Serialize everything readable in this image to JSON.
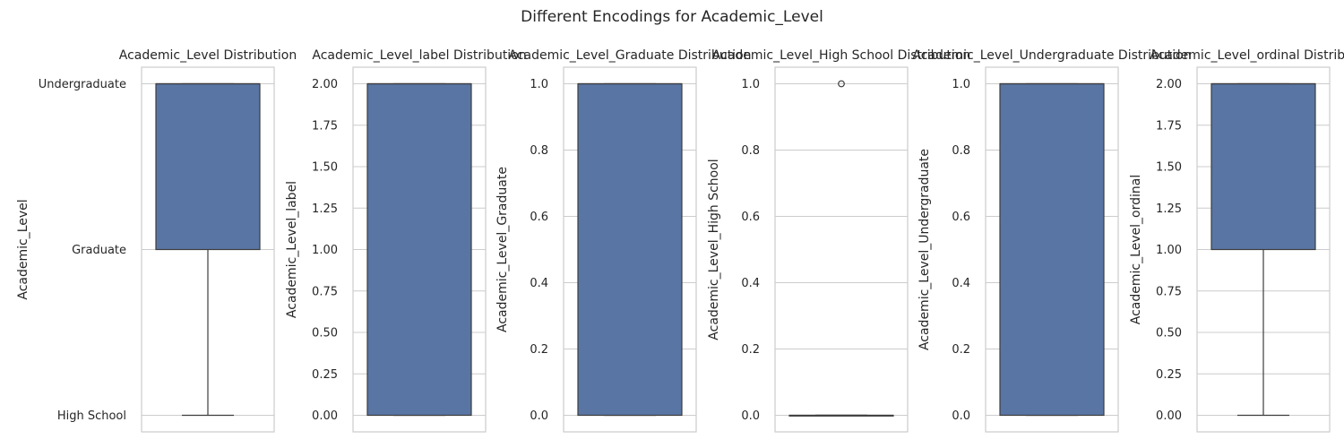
{
  "figure": {
    "suptitle": "Different Encodings for Academic_Level"
  },
  "colors": {
    "box_fill": "#5975a4",
    "box_edge": "#3d3d3d",
    "grid": "#cccccc",
    "spine": "#cccccc",
    "background": "#ffffff"
  },
  "chart_data": [
    {
      "type": "box",
      "title": "Academic_Level Distribution",
      "ylabel": "Academic_Level",
      "categorical_y": true,
      "yticks": [
        {
          "v": 0,
          "label": "High School"
        },
        {
          "v": 1,
          "label": "Graduate"
        },
        {
          "v": 2,
          "label": "Undergraduate"
        }
      ],
      "ylim": [
        -0.1,
        2.1
      ],
      "grid": true,
      "box": {
        "whislo": 0,
        "q1": 1,
        "med": 2,
        "q3": 2,
        "whishi": 2
      },
      "fliers": []
    },
    {
      "type": "box",
      "title": "Academic_Level_label Distribution",
      "ylabel": "Academic_Level_label",
      "yticks": [
        {
          "v": 0,
          "label": "0.00"
        },
        {
          "v": 0.25,
          "label": "0.25"
        },
        {
          "v": 0.5,
          "label": "0.50"
        },
        {
          "v": 0.75,
          "label": "0.75"
        },
        {
          "v": 1,
          "label": "1.00"
        },
        {
          "v": 1.25,
          "label": "1.25"
        },
        {
          "v": 1.5,
          "label": "1.50"
        },
        {
          "v": 1.75,
          "label": "1.75"
        },
        {
          "v": 2,
          "label": "2.00"
        }
      ],
      "ylim": [
        -0.1,
        2.1
      ],
      "grid": true,
      "box": {
        "whislo": 0,
        "q1": 0,
        "med": 2,
        "q3": 2,
        "whishi": 2
      },
      "fliers": []
    },
    {
      "type": "box",
      "title": "Academic_Level_Graduate Distribution",
      "ylabel": "Academic_Level_Graduate",
      "yticks": [
        {
          "v": 0,
          "label": "0.0"
        },
        {
          "v": 0.2,
          "label": "0.2"
        },
        {
          "v": 0.4,
          "label": "0.4"
        },
        {
          "v": 0.6,
          "label": "0.6"
        },
        {
          "v": 0.8,
          "label": "0.8"
        },
        {
          "v": 1,
          "label": "1.0"
        }
      ],
      "ylim": [
        -0.05,
        1.05
      ],
      "grid": true,
      "box": {
        "whislo": 0,
        "q1": 0,
        "med": 1,
        "q3": 1,
        "whishi": 1
      },
      "fliers": []
    },
    {
      "type": "box",
      "title": "Academic_Level_High School Distribution",
      "ylabel": "Academic_Level_High School",
      "yticks": [
        {
          "v": 0,
          "label": "0.0"
        },
        {
          "v": 0.2,
          "label": "0.2"
        },
        {
          "v": 0.4,
          "label": "0.4"
        },
        {
          "v": 0.6,
          "label": "0.6"
        },
        {
          "v": 0.8,
          "label": "0.8"
        },
        {
          "v": 1,
          "label": "1.0"
        }
      ],
      "ylim": [
        -0.05,
        1.05
      ],
      "grid": true,
      "box": {
        "whislo": 0,
        "q1": 0,
        "med": 0,
        "q3": 0,
        "whishi": 0
      },
      "fliers": [
        1
      ]
    },
    {
      "type": "box",
      "title": "Academic_Level_Undergraduate Distribution",
      "ylabel": "Academic_Level_Undergraduate",
      "yticks": [
        {
          "v": 0,
          "label": "0.0"
        },
        {
          "v": 0.2,
          "label": "0.2"
        },
        {
          "v": 0.4,
          "label": "0.4"
        },
        {
          "v": 0.6,
          "label": "0.6"
        },
        {
          "v": 0.8,
          "label": "0.8"
        },
        {
          "v": 1,
          "label": "1.0"
        }
      ],
      "ylim": [
        -0.05,
        1.05
      ],
      "grid": true,
      "box": {
        "whislo": 0,
        "q1": 0,
        "med": 1,
        "q3": 1,
        "whishi": 1
      },
      "fliers": []
    },
    {
      "type": "box",
      "title": "Academic_Level_ordinal Distribution",
      "ylabel": "Academic_Level_ordinal",
      "yticks": [
        {
          "v": 0,
          "label": "0.00"
        },
        {
          "v": 0.25,
          "label": "0.25"
        },
        {
          "v": 0.5,
          "label": "0.50"
        },
        {
          "v": 0.75,
          "label": "0.75"
        },
        {
          "v": 1,
          "label": "1.00"
        },
        {
          "v": 1.25,
          "label": "1.25"
        },
        {
          "v": 1.5,
          "label": "1.50"
        },
        {
          "v": 1.75,
          "label": "1.75"
        },
        {
          "v": 2,
          "label": "2.00"
        }
      ],
      "ylim": [
        -0.1,
        2.1
      ],
      "grid": true,
      "box": {
        "whislo": 0,
        "q1": 1,
        "med": 2,
        "q3": 2,
        "whishi": 2
      },
      "fliers": []
    }
  ]
}
